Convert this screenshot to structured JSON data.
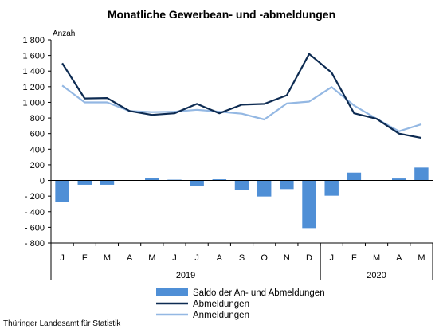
{
  "chart_data": {
    "type": "bar+line",
    "title": "Monatliche Gewerbean- und -abmeldungen",
    "ylabel": "Anzahl",
    "ylim": [
      -800,
      1800
    ],
    "ytick_step": 200,
    "yticks_labels": [
      "1 800",
      "1 600",
      "1 400",
      "1 200",
      "1 000",
      "800",
      "600",
      "400",
      "200",
      "0",
      "- 200",
      "- 400",
      "- 600",
      "- 800"
    ],
    "categories": [
      "J",
      "F",
      "M",
      "A",
      "M",
      "J",
      "J",
      "A",
      "S",
      "O",
      "N",
      "D",
      "J",
      "F",
      "M",
      "A",
      "M"
    ],
    "year_groups": [
      {
        "label": "2019",
        "count": 12
      },
      {
        "label": "2020",
        "count": 5
      }
    ],
    "grid": false,
    "legend_position": "bottom-center",
    "series": [
      {
        "name": "Saldo der An- und Abmeldungen",
        "type": "bar",
        "color": "#4f8fd6",
        "values": [
          -275,
          -55,
          -55,
          0,
          35,
          10,
          -75,
          15,
          -125,
          -205,
          -110,
          -610,
          -195,
          100,
          0,
          25,
          165
        ]
      },
      {
        "name": "Abmeldungen",
        "type": "line",
        "color": "#0d2b52",
        "values": [
          1500,
          1050,
          1055,
          890,
          840,
          860,
          980,
          860,
          970,
          980,
          1090,
          1620,
          1380,
          860,
          790,
          600,
          545
        ]
      },
      {
        "name": "Anmeldungen",
        "type": "line",
        "color": "#94b8e3",
        "values": [
          1215,
          1000,
          1000,
          890,
          875,
          880,
          905,
          880,
          855,
          780,
          985,
          1010,
          1195,
          960,
          790,
          630,
          720
        ]
      }
    ]
  },
  "source": "Thüringer Landesamt für Statistik"
}
